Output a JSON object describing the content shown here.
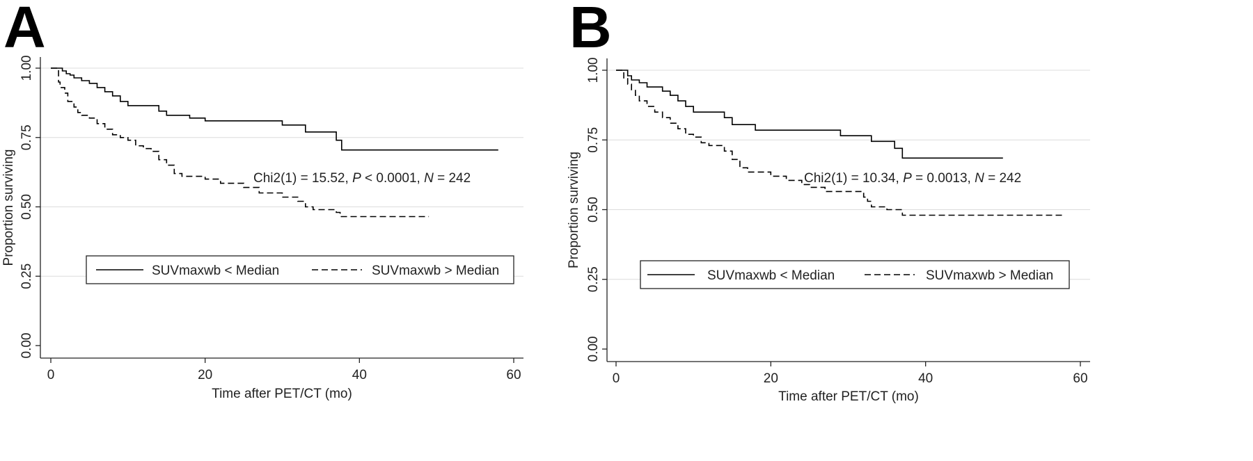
{
  "chart_data": [
    {
      "panel_label": "A",
      "type": "line",
      "xlabel": "Time after PET/CT (mo)",
      "ylabel": "Proportion surviving",
      "xlim": [
        0,
        60
      ],
      "ylim": [
        0,
        1
      ],
      "x_ticks": [
        "0",
        "20",
        "40",
        "60"
      ],
      "y_ticks": [
        "0.00",
        "0.25",
        "0.50",
        "0.75",
        "1.00"
      ],
      "grid": "horizontal",
      "legend_placement": "bottom-center",
      "annotation": {
        "prefix": "Chi2(1) = 15.52, ",
        "p_label": "P",
        "p_value": " < 0.0001, ",
        "n_label": "N",
        "n_value": " = 242"
      },
      "series": [
        {
          "name": "SUVmaxwb < Median",
          "style": "solid",
          "x": [
            0,
            1,
            1.5,
            2,
            2.5,
            3,
            4,
            5,
            6,
            7,
            8,
            9,
            10,
            14,
            15,
            18,
            20,
            30,
            33,
            37,
            37.7,
            58
          ],
          "y": [
            1.0,
            1.0,
            0.99,
            0.98,
            0.975,
            0.965,
            0.955,
            0.945,
            0.93,
            0.915,
            0.9,
            0.88,
            0.865,
            0.845,
            0.83,
            0.82,
            0.81,
            0.795,
            0.77,
            0.74,
            0.705,
            0.705
          ]
        },
        {
          "name": "SUVmaxwb > Median",
          "style": "dashed",
          "x": [
            0,
            1,
            1.2,
            1.8,
            2.2,
            3,
            3.5,
            4,
            5,
            6,
            7,
            8,
            9,
            10,
            11,
            12,
            13,
            14,
            15,
            16,
            17,
            20,
            22,
            25,
            27,
            30,
            32,
            33,
            34,
            37,
            37.5,
            49
          ],
          "y": [
            1.0,
            0.95,
            0.93,
            0.91,
            0.88,
            0.86,
            0.84,
            0.83,
            0.82,
            0.8,
            0.78,
            0.76,
            0.75,
            0.74,
            0.72,
            0.71,
            0.7,
            0.67,
            0.65,
            0.62,
            0.61,
            0.6,
            0.585,
            0.57,
            0.55,
            0.535,
            0.52,
            0.5,
            0.49,
            0.48,
            0.465,
            0.465
          ]
        }
      ]
    },
    {
      "panel_label": "B",
      "type": "line",
      "xlabel": "Time after PET/CT (mo)",
      "ylabel": "Proportion surviving",
      "xlim": [
        0,
        60
      ],
      "ylim": [
        0,
        1
      ],
      "x_ticks": [
        "0",
        "20",
        "40",
        "60"
      ],
      "y_ticks": [
        "0.00",
        "0.25",
        "0.50",
        "0.75",
        "1.00"
      ],
      "grid": "horizontal",
      "legend_placement": "bottom-center",
      "annotation": {
        "prefix": "Chi2(1) = 10.34, ",
        "p_label": "P",
        "p_value": " = 0.0013, ",
        "n_label": "N",
        "n_value": " = 242"
      },
      "series": [
        {
          "name": "SUVmaxwb < Median",
          "style": "solid",
          "x": [
            0,
            1,
            1.5,
            2,
            3,
            4,
            6,
            7,
            8,
            9,
            10,
            14,
            15,
            18,
            29,
            33,
            36,
            37,
            50
          ],
          "y": [
            1.0,
            1.0,
            0.98,
            0.965,
            0.955,
            0.94,
            0.925,
            0.91,
            0.89,
            0.87,
            0.85,
            0.83,
            0.805,
            0.785,
            0.765,
            0.745,
            0.72,
            0.685,
            0.685
          ]
        },
        {
          "name": "SUVmaxwb > Median",
          "style": "dashed",
          "x": [
            0,
            1,
            1.5,
            2,
            2.5,
            3,
            4,
            5,
            6,
            7,
            8,
            9,
            10,
            11,
            12,
            14,
            15,
            16,
            17,
            20,
            22,
            24,
            25,
            27,
            32,
            32.5,
            33,
            35,
            37,
            58
          ],
          "y": [
            1.0,
            0.97,
            0.95,
            0.93,
            0.91,
            0.89,
            0.87,
            0.85,
            0.83,
            0.81,
            0.79,
            0.77,
            0.76,
            0.74,
            0.73,
            0.71,
            0.68,
            0.65,
            0.635,
            0.62,
            0.605,
            0.59,
            0.58,
            0.565,
            0.545,
            0.53,
            0.51,
            0.5,
            0.48,
            0.48
          ]
        }
      ]
    }
  ]
}
